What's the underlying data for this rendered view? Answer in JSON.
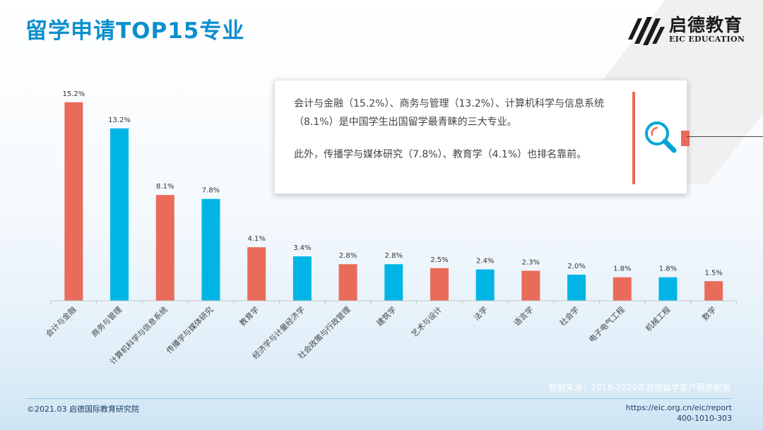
{
  "title": "留学申请TOP15专业",
  "logo": {
    "name_cn": "启德教育",
    "name_en": "EIC EDUCATION"
  },
  "callout": {
    "paragraph1": "会计与金融（15.2%）、商务与管理（13.2%）、计算机科学与信息系统（8.1%）是中国学生出国留学最青睐的三大专业。",
    "paragraph2": "此外，传播学与媒体研究（7.8%）、教育学（4.1%）也排名靠前。",
    "icon": "magnifier-icon"
  },
  "chart_data": {
    "type": "bar",
    "categories": [
      "会计与金融",
      "商务与管理",
      "计算机科学与信息系统",
      "传播学与媒体研究",
      "教育学",
      "经济学与计量经济学",
      "社会政策与行政管理",
      "建筑学",
      "艺术与设计",
      "法学",
      "语言学",
      "社会学",
      "电子电气工程",
      "机械工程",
      "数学"
    ],
    "values": [
      15.2,
      13.2,
      8.1,
      7.8,
      4.1,
      3.4,
      2.8,
      2.8,
      2.5,
      2.4,
      2.3,
      2.0,
      1.8,
      1.8,
      1.5
    ],
    "value_labels": [
      "15.2%",
      "13.2%",
      "8.1%",
      "7.8%",
      "4.1%",
      "3.4%",
      "2.8%",
      "2.8%",
      "2.5%",
      "2.4%",
      "2.3%",
      "2.0%",
      "1.8%",
      "1.8%",
      "1.5%"
    ],
    "colors": [
      "#e96b5a",
      "#00b5e6"
    ],
    "ylim": [
      0,
      16
    ],
    "grid": false,
    "legend": "none"
  },
  "source": "数据来源：2018-2020年启德留学客户服务数据",
  "footer": {
    "copyright": "©2021.03 启德国际教育研究院",
    "url": "https://eic.org.cn/eic/report",
    "phone": "400-1010-303"
  }
}
